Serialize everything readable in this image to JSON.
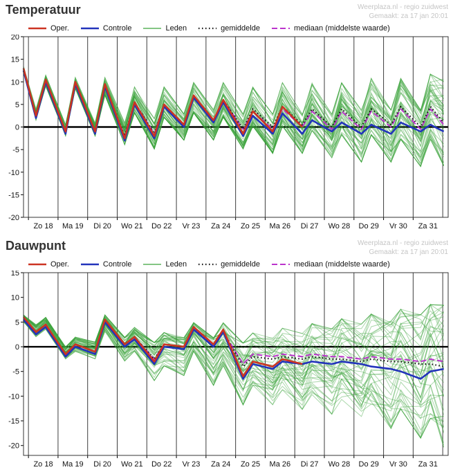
{
  "watermark": {
    "line1": "Weerplaza.nl - regio zuidwest",
    "line2": "Gemaakt: za 17 jan 20:01"
  },
  "chart_data": [
    {
      "type": "line",
      "title": "Temperatuur",
      "xlabel": "",
      "ylabel": "",
      "ylim": [
        -20,
        20
      ],
      "yticks": [
        -20,
        -15,
        -10,
        -5,
        0,
        5,
        10,
        15,
        20
      ],
      "x_end": 14.35,
      "day_offset": 0.1667,
      "day_labels": [
        "Zo 18",
        "Ma 19",
        "Di 20",
        "Wo 21",
        "Do 22",
        "Vr 23",
        "Za 24",
        "Zo 25",
        "Ma 26",
        "Di 27",
        "Wo 28",
        "Do 29",
        "Vr 30",
        "Za 31"
      ],
      "x": [
        0,
        0.42,
        0.75,
        1.42,
        1.75,
        2.42,
        2.75,
        3.42,
        3.75,
        4.42,
        4.75,
        5.42,
        5.75,
        6.42,
        6.75,
        7.42,
        7.75,
        8.42,
        8.75,
        9.42,
        9.75,
        10.42,
        10.75,
        11.42,
        11.75,
        12.42,
        12.75,
        13.42,
        13.75,
        14.2
      ],
      "series": [
        {
          "name": "Oper.",
          "color": "#cc3322",
          "width": 2.6,
          "dash": "",
          "values": [
            13,
            2.5,
            10.5,
            -1,
            10,
            -1,
            9.5,
            -2.5,
            5.5,
            -2,
            5,
            0.5,
            7,
            1.5,
            6,
            -1.5,
            3.5,
            -1,
            4.5,
            0,
            null,
            null,
            null,
            null,
            null,
            null,
            null,
            null,
            null,
            null
          ]
        },
        {
          "name": "Controle",
          "color": "#2233bb",
          "width": 2.6,
          "dash": "",
          "values": [
            12.5,
            2,
            10,
            -1.5,
            9.5,
            -1.5,
            9,
            -3,
            5,
            -2.5,
            4.5,
            0,
            6.5,
            1,
            5.5,
            -2,
            2.5,
            -1.5,
            3,
            -1.5,
            1.5,
            -1,
            1,
            -1.5,
            0.5,
            -1.5,
            1,
            -1,
            0.5,
            -1
          ]
        },
        {
          "name": "gemiddelde",
          "color": "#111111",
          "width": 2.2,
          "dash": "1.5,3.5",
          "values": [
            12.5,
            2.5,
            10,
            -1,
            9.5,
            -1,
            9,
            -2,
            5.5,
            -1.5,
            5,
            0.5,
            6.5,
            1.5,
            6,
            -0.5,
            4,
            0,
            4.5,
            0.5,
            4,
            0,
            4,
            0,
            4,
            0.5,
            4.5,
            0,
            4.5,
            1
          ]
        },
        {
          "name": "mediaan (middelste waarde)",
          "color": "#bb33cc",
          "width": 2,
          "dash": "8,4",
          "values": [
            12.5,
            2.5,
            10,
            -1,
            9.5,
            -1,
            9,
            -2,
            5.5,
            -1.5,
            5,
            0.5,
            6.5,
            1.5,
            6,
            -0.5,
            3.5,
            -0.5,
            4,
            0,
            3.5,
            -0.5,
            3.5,
            -0.5,
            3.5,
            0,
            4,
            -0.5,
            4,
            0.5
          ]
        }
      ],
      "members": {
        "name": "Leden",
        "color": "#3aa23a",
        "count": 50,
        "opacity": 0.42,
        "width": 1,
        "seed": 11,
        "min": [
          12,
          1.5,
          9,
          -2,
          8.5,
          -2,
          7,
          -4,
          3,
          -5,
          2,
          -3,
          3,
          -3,
          2,
          -5,
          0,
          -6,
          0,
          -6,
          -1,
          -7,
          -2,
          -8,
          -2,
          -8,
          -3,
          -9,
          -3,
          -9
        ],
        "max": [
          13.5,
          4,
          11.5,
          0.5,
          11,
          1,
          11,
          1,
          9,
          2,
          9,
          3,
          10,
          4,
          10,
          3,
          9,
          3,
          10,
          3,
          10,
          3,
          10,
          4,
          11,
          4,
          11,
          4,
          12,
          11
        ]
      }
    },
    {
      "type": "line",
      "title": "Dauwpunt",
      "xlabel": "",
      "ylabel": "",
      "ylim": [
        -22,
        15
      ],
      "yticks": [
        -20,
        -15,
        -10,
        -5,
        0,
        5,
        10,
        15
      ],
      "x_end": 14.35,
      "day_offset": 0.1667,
      "day_labels": [
        "Zo 18",
        "Ma 19",
        "Di 20",
        "Wo 21",
        "Do 22",
        "Vr 23",
        "Za 24",
        "Zo 25",
        "Ma 26",
        "Di 27",
        "Wo 28",
        "Do 29",
        "Vr 30",
        "Za 31"
      ],
      "x": [
        0,
        0.42,
        0.75,
        1.42,
        1.75,
        2.42,
        2.75,
        3.42,
        3.75,
        4.42,
        4.75,
        5.42,
        5.75,
        6.42,
        6.75,
        7.42,
        7.75,
        8.42,
        8.75,
        9.42,
        9.75,
        10.42,
        10.75,
        11.42,
        11.75,
        12.42,
        12.75,
        13.42,
        13.75,
        14.2
      ],
      "series": [
        {
          "name": "Oper.",
          "color": "#cc3322",
          "width": 2.6,
          "dash": "",
          "values": [
            6,
            3,
            4.5,
            -1.5,
            0.5,
            -1,
            5.5,
            0.5,
            2,
            -3,
            0.5,
            0,
            4,
            0.5,
            3.5,
            -6,
            -3,
            -4,
            -2.5,
            -3.5,
            null,
            null,
            null,
            null,
            null,
            null,
            null,
            null,
            null,
            null
          ]
        },
        {
          "name": "Controle",
          "color": "#2233bb",
          "width": 2.6,
          "dash": "",
          "values": [
            5.5,
            2.5,
            4,
            -2,
            0,
            -1.5,
            5,
            0,
            1.5,
            -3.5,
            0,
            -0.5,
            3.5,
            0,
            3,
            -6.5,
            -3.5,
            -4.5,
            -3,
            -3.5,
            -3,
            -3.5,
            -3,
            -3.5,
            -4,
            -4.5,
            -5,
            -6.5,
            -5,
            -4.5
          ]
        },
        {
          "name": "gemiddelde",
          "color": "#111111",
          "width": 2.2,
          "dash": "1.5,3.5",
          "values": [
            5.5,
            3,
            4.5,
            -1.5,
            0.5,
            -1,
            5,
            0.5,
            2,
            -2.5,
            0.5,
            0,
            3.5,
            0.5,
            3,
            -4,
            -2,
            -2.5,
            -2,
            -2.5,
            -2,
            -2.5,
            -2.5,
            -3,
            -2.5,
            -3,
            -3,
            -3.5,
            -3.5,
            -4
          ]
        },
        {
          "name": "mediaan (middelste waarde)",
          "color": "#bb33cc",
          "width": 2,
          "dash": "8,4",
          "values": [
            5.5,
            3,
            4.5,
            -1.5,
            0.5,
            -1,
            5,
            0.5,
            2,
            -2.5,
            0.5,
            0,
            3.5,
            0.5,
            3,
            -3.5,
            -1.5,
            -2,
            -1.5,
            -2,
            -1.5,
            -2,
            -2,
            -2.5,
            -2,
            -2.5,
            -2.5,
            -3,
            -2.5,
            -3
          ]
        }
      ],
      "members": {
        "name": "Leden",
        "color": "#3aa23a",
        "count": 50,
        "opacity": 0.42,
        "width": 1,
        "seed": 23,
        "min": [
          5,
          2,
          3.5,
          -2.5,
          -1,
          -2.5,
          3,
          -3,
          -1,
          -7,
          -4,
          -6,
          -1,
          -8,
          -4,
          -12,
          -8,
          -12,
          -9,
          -13,
          -10,
          -14,
          -11,
          -15,
          -12,
          -17,
          -13,
          -19,
          -15,
          -21
        ],
        "max": [
          6.5,
          4.5,
          6,
          0,
          2,
          1,
          6.5,
          2,
          4,
          1,
          3,
          2,
          5,
          2,
          5,
          1,
          3,
          2,
          4,
          3,
          5,
          4,
          6,
          5,
          7,
          6,
          8,
          7,
          9,
          9
        ]
      }
    }
  ]
}
